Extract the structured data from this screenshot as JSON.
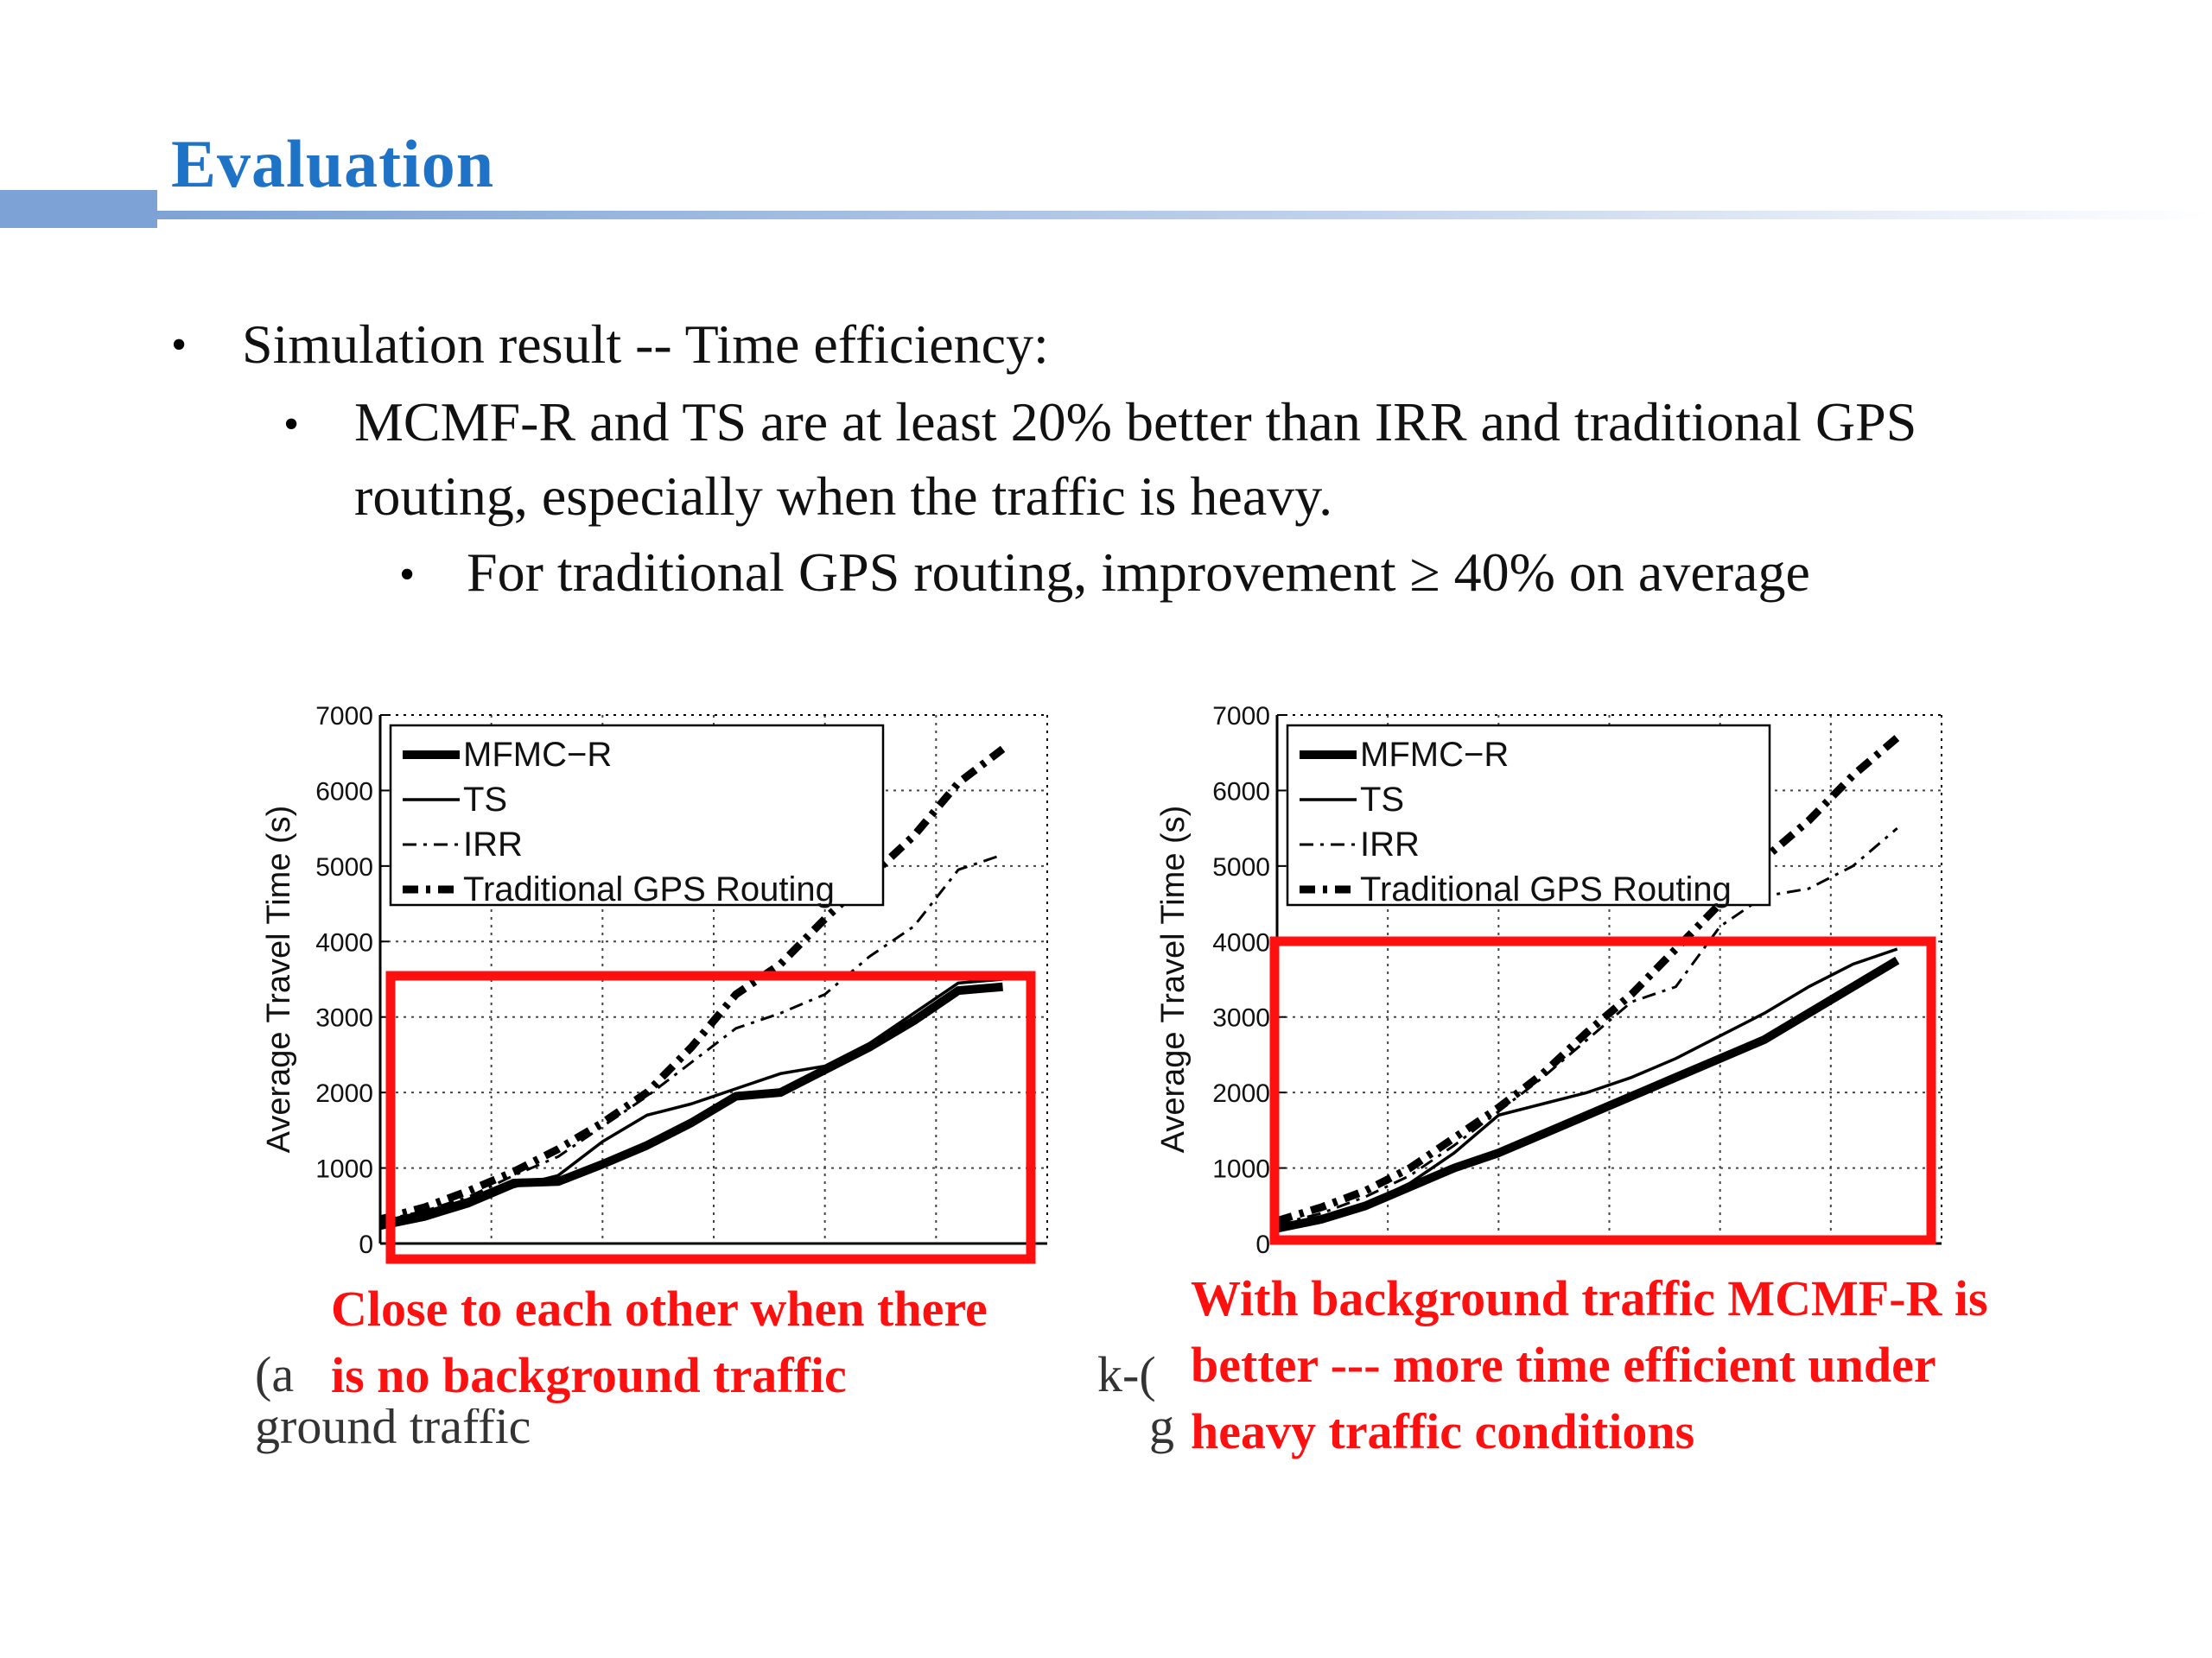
{
  "slide": {
    "title": "Evaluation",
    "bullets": [
      {
        "level": 1,
        "text": "Simulation result -- Time efficiency:"
      },
      {
        "level": 2,
        "text": "MCMF-R and TS are at least 20% better than IRR and traditional GPS"
      },
      {
        "level": 2,
        "text": "routing, especially when the traffic is heavy."
      },
      {
        "level": 3,
        "text": "For traditional GPS routing, improvement ≥ 40% on average"
      }
    ],
    "annotations": {
      "left": [
        "Close to each other when there",
        "is no background traffic"
      ],
      "right": [
        "With background traffic MCMF-R is",
        "better --- more time efficient under",
        "heavy traffic conditions"
      ]
    },
    "caption_fragments": {
      "left_a": "(a",
      "left_b": "ground traffic",
      "right_a": "k-(",
      "right_b": "g"
    },
    "colors": {
      "title": "#1f73c7",
      "highlight": "#ff1010",
      "bar": "#7da3d6"
    }
  },
  "chart_data": [
    {
      "type": "line",
      "ylabel": "Average Travel Time (s)",
      "ylim": [
        0,
        7000
      ],
      "yticks": [
        "0",
        "1000",
        "2000",
        "3000",
        "4000",
        "5000",
        "6000",
        "7000"
      ],
      "xlim": [
        0,
        30
      ],
      "grid": true,
      "legend_position": "top-left",
      "x": [
        0,
        2,
        4,
        6,
        8,
        10,
        12,
        14,
        16,
        18,
        20,
        22,
        24,
        26,
        28
      ],
      "series": [
        {
          "name": "MFMC−R",
          "style": "thick-solid",
          "values": [
            250,
            380,
            550,
            800,
            820,
            1050,
            1300,
            1600,
            1950,
            2000,
            2300,
            2600,
            2950,
            3350,
            3400
          ]
        },
        {
          "name": "TS",
          "style": "thin-solid",
          "values": [
            200,
            320,
            500,
            750,
            900,
            1350,
            1700,
            1850,
            2050,
            2250,
            2350,
            2650,
            3050,
            3450,
            3500
          ]
        },
        {
          "name": "IRR",
          "style": "thin-dashdot",
          "values": [
            300,
            430,
            620,
            900,
            1150,
            1550,
            1950,
            2400,
            2850,
            3050,
            3300,
            3800,
            4200,
            4950,
            5150
          ]
        },
        {
          "name": "Traditional GPS Routing",
          "style": "thick-dashdot",
          "values": [
            320,
            480,
            700,
            950,
            1250,
            1600,
            2000,
            2600,
            3300,
            3700,
            4300,
            4850,
            5400,
            6100,
            6550
          ]
        }
      ]
    },
    {
      "type": "line",
      "ylabel": "Average Travel Time (s)",
      "ylim": [
        0,
        7000
      ],
      "yticks": [
        "0",
        "1000",
        "2000",
        "3000",
        "4000",
        "5000",
        "6000",
        "7000"
      ],
      "xlim": [
        0,
        30
      ],
      "grid": true,
      "legend_position": "top-left",
      "x": [
        0,
        2,
        4,
        6,
        8,
        10,
        12,
        14,
        16,
        18,
        20,
        22,
        24,
        26,
        28
      ],
      "series": [
        {
          "name": "MFMC−R",
          "style": "thick-solid",
          "values": [
            200,
            320,
            500,
            750,
            1000,
            1200,
            1450,
            1700,
            1950,
            2200,
            2450,
            2700,
            3050,
            3400,
            3750
          ]
        },
        {
          "name": "TS",
          "style": "thin-solid",
          "values": [
            180,
            300,
            520,
            800,
            1200,
            1700,
            1850,
            2000,
            2200,
            2450,
            2750,
            3050,
            3400,
            3700,
            3900
          ]
        },
        {
          "name": "IRR",
          "style": "thin-dashdot",
          "values": [
            250,
            400,
            620,
            900,
            1300,
            1750,
            2200,
            2700,
            3200,
            3400,
            4200,
            4600,
            4700,
            5000,
            5500
          ]
        },
        {
          "name": "Traditional GPS Routing",
          "style": "thick-dashdot",
          "values": [
            300,
            480,
            700,
            1000,
            1400,
            1800,
            2250,
            2800,
            3300,
            3900,
            4500,
            5100,
            5600,
            6200,
            6700
          ]
        }
      ]
    }
  ]
}
